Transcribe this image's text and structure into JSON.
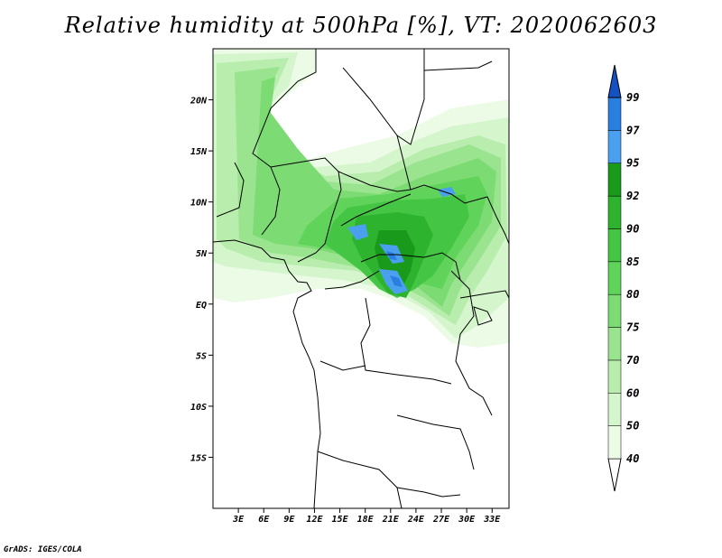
{
  "title": "Relative humidity at 500hPa [%], VT: 2020062603",
  "credit": "GrADS: IGES/COLA",
  "map": {
    "variable": "Relative humidity",
    "level": "500hPa",
    "units": "%",
    "valid_time": "2020062603",
    "lon_range": [
      0,
      35
    ],
    "lat_range": [
      -20,
      25
    ],
    "lat_ticks": [
      {
        "value": 20,
        "label": "20N"
      },
      {
        "value": 15,
        "label": "15N"
      },
      {
        "value": 10,
        "label": "10N"
      },
      {
        "value": 5,
        "label": "5N"
      },
      {
        "value": 0,
        "label": "EQ"
      },
      {
        "value": -5,
        "label": "5S"
      },
      {
        "value": -10,
        "label": "10S"
      },
      {
        "value": -15,
        "label": "15S"
      }
    ],
    "lon_ticks": [
      {
        "value": 3,
        "label": "3E"
      },
      {
        "value": 6,
        "label": "6E"
      },
      {
        "value": 9,
        "label": "9E"
      },
      {
        "value": 12,
        "label": "12E"
      },
      {
        "value": 15,
        "label": "15E"
      },
      {
        "value": 18,
        "label": "18E"
      },
      {
        "value": 21,
        "label": "21E"
      },
      {
        "value": 24,
        "label": "24E"
      },
      {
        "value": 27,
        "label": "27E"
      },
      {
        "value": 30,
        "label": "30E"
      },
      {
        "value": 33,
        "label": "33E"
      }
    ]
  },
  "colorbar": {
    "levels": [
      "40",
      "50",
      "60",
      "70",
      "75",
      "80",
      "85",
      "90",
      "92",
      "95",
      "97",
      "99"
    ],
    "colors": [
      "#ebfbe6",
      "#d5f5cd",
      "#b8edae",
      "#9ae48f",
      "#7ddb74",
      "#5fd35a",
      "#44c544",
      "#2eb32e",
      "#1a9a1a",
      "#4aa0ee",
      "#2a7ee0",
      "#1452c4"
    ],
    "below_color": "#ffffff",
    "above_color": "#1452c4"
  }
}
